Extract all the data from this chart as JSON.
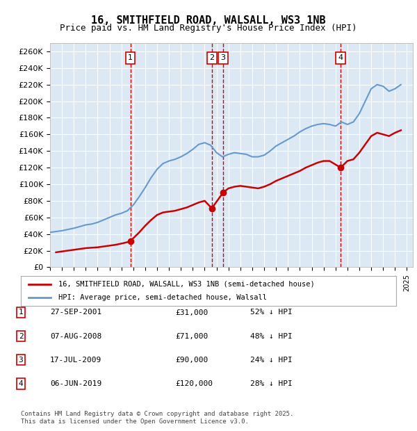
{
  "title": "16, SMITHFIELD ROAD, WALSALL, WS3 1NB",
  "subtitle": "Price paid vs. HM Land Registry's House Price Index (HPI)",
  "ylabel_ticks": [
    "£0",
    "£20K",
    "£40K",
    "£60K",
    "£80K",
    "£100K",
    "£120K",
    "£140K",
    "£160K",
    "£180K",
    "£200K",
    "£220K",
    "£240K",
    "£260K"
  ],
  "ylim": [
    0,
    270000
  ],
  "yticks": [
    0,
    20000,
    40000,
    60000,
    80000,
    100000,
    120000,
    140000,
    160000,
    180000,
    200000,
    220000,
    240000,
    260000
  ],
  "xlim_start": 1995.0,
  "xlim_end": 2025.5,
  "background_color": "#dce9f5",
  "grid_color": "#ffffff",
  "red_line_color": "#cc0000",
  "blue_line_color": "#6699cc",
  "vline_color": "#cc0000",
  "legend_label_red": "16, SMITHFIELD ROAD, WALSALL, WS3 1NB (semi-detached house)",
  "legend_label_blue": "HPI: Average price, semi-detached house, Walsall",
  "transactions": [
    {
      "num": 1,
      "date": "27-SEP-2001",
      "price": 31000,
      "hpi_rel": "52% ↓ HPI",
      "year": 2001.75
    },
    {
      "num": 2,
      "date": "07-AUG-2008",
      "price": 71000,
      "hpi_rel": "48% ↓ HPI",
      "year": 2008.6
    },
    {
      "num": 3,
      "date": "17-JUL-2009",
      "price": 90000,
      "hpi_rel": "24% ↓ HPI",
      "year": 2009.55
    },
    {
      "num": 4,
      "date": "06-JUN-2019",
      "price": 120000,
      "hpi_rel": "28% ↓ HPI",
      "year": 2019.43
    }
  ],
  "footer": "Contains HM Land Registry data © Crown copyright and database right 2025.\nThis data is licensed under the Open Government Licence v3.0.",
  "hpi_data": {
    "years": [
      1995.0,
      1995.5,
      1996.0,
      1996.5,
      1997.0,
      1997.5,
      1998.0,
      1998.5,
      1999.0,
      1999.5,
      2000.0,
      2000.5,
      2001.0,
      2001.5,
      2002.0,
      2002.5,
      2003.0,
      2003.5,
      2004.0,
      2004.5,
      2005.0,
      2005.5,
      2006.0,
      2006.5,
      2007.0,
      2007.5,
      2008.0,
      2008.5,
      2009.0,
      2009.5,
      2010.0,
      2010.5,
      2011.0,
      2011.5,
      2012.0,
      2012.5,
      2013.0,
      2013.5,
      2014.0,
      2014.5,
      2015.0,
      2015.5,
      2016.0,
      2016.5,
      2017.0,
      2017.5,
      2018.0,
      2018.5,
      2019.0,
      2019.5,
      2020.0,
      2020.5,
      2021.0,
      2021.5,
      2022.0,
      2022.5,
      2023.0,
      2023.5,
      2024.0,
      2024.5
    ],
    "values": [
      42000,
      43000,
      44000,
      45500,
      47000,
      49000,
      51000,
      52000,
      54000,
      57000,
      60000,
      63000,
      65000,
      68000,
      75000,
      85000,
      96000,
      108000,
      118000,
      125000,
      128000,
      130000,
      133000,
      137000,
      142000,
      148000,
      150000,
      147000,
      138000,
      133000,
      136000,
      138000,
      137000,
      136000,
      133000,
      133000,
      135000,
      140000,
      146000,
      150000,
      154000,
      158000,
      163000,
      167000,
      170000,
      172000,
      173000,
      172000,
      170000,
      175000,
      172000,
      175000,
      185000,
      200000,
      215000,
      220000,
      218000,
      212000,
      215000,
      220000
    ]
  },
  "price_paid_data": {
    "years": [
      1995.5,
      1996.0,
      1996.5,
      1997.0,
      1997.5,
      1998.0,
      1998.5,
      1999.0,
      1999.5,
      2000.0,
      2000.5,
      2001.0,
      2001.75,
      2002.0,
      2002.5,
      2003.0,
      2003.5,
      2004.0,
      2004.5,
      2005.0,
      2005.5,
      2006.0,
      2006.5,
      2007.0,
      2007.5,
      2008.0,
      2008.6,
      2009.55,
      2010.0,
      2010.5,
      2011.0,
      2011.5,
      2012.0,
      2012.5,
      2013.0,
      2013.5,
      2014.0,
      2014.5,
      2015.0,
      2015.5,
      2016.0,
      2016.5,
      2017.0,
      2017.5,
      2018.0,
      2018.5,
      2019.43,
      2020.0,
      2020.5,
      2021.0,
      2021.5,
      2022.0,
      2022.5,
      2023.0,
      2023.5,
      2024.0,
      2024.5
    ],
    "values": [
      18000,
      19000,
      20000,
      21000,
      22000,
      23000,
      23500,
      24000,
      25000,
      26000,
      27000,
      28500,
      31000,
      35000,
      42000,
      50000,
      57000,
      63000,
      66000,
      67000,
      68000,
      70000,
      72000,
      75000,
      78000,
      80000,
      71000,
      90000,
      95000,
      97000,
      98000,
      97000,
      96000,
      95000,
      97000,
      100000,
      104000,
      107000,
      110000,
      113000,
      116000,
      120000,
      123000,
      126000,
      128000,
      128000,
      120000,
      128000,
      130000,
      138000,
      148000,
      158000,
      162000,
      160000,
      158000,
      162000,
      165000
    ]
  }
}
